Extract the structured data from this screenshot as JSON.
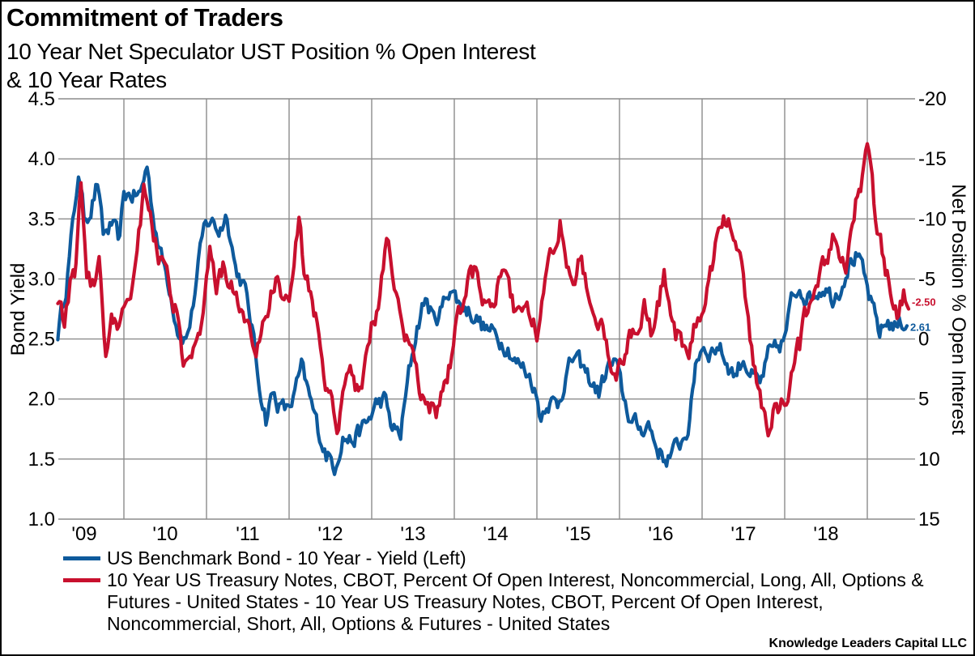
{
  "title": "Commitment of Traders",
  "subtitle_lines": [
    "10 Year Net Speculator UST Position % Open Interest",
    "& 10 Year Rates"
  ],
  "source": "Knowledge Leaders Capital LLC",
  "colors": {
    "blue": "#0e5a9c",
    "red": "#c8102e",
    "grid": "#8c8c8c"
  },
  "chart_data": {
    "type": "line",
    "title": "Commitment of Traders",
    "subtitle": "10 Year Net Speculator UST Position % Open Interest & 10 Year Rates",
    "xlabel": "",
    "x_tick_labels": [
      "'09",
      "'10",
      "'11",
      "'12",
      "'13",
      "'14",
      "'15",
      "'16",
      "'17",
      "'18"
    ],
    "x_range": [
      2009.2,
      2019.55
    ],
    "grid": true,
    "legend_position": "bottom",
    "left_axis": {
      "label": "Bond Yield",
      "ylim": [
        1.0,
        4.5
      ],
      "ticks": [
        "4.5",
        "4.0",
        "3.5",
        "3.0",
        "2.5",
        "2.0",
        "1.5",
        "1.0"
      ]
    },
    "right_axis": {
      "label": "Net Position % Open Interest",
      "ylim": [
        -20,
        15
      ],
      "inverted": true,
      "ticks": [
        "-20",
        "-15",
        "-10",
        "-5",
        "0",
        "5",
        "10",
        "15"
      ]
    },
    "series": [
      {
        "name": "US Benchmark Bond - 10 Year - Yield   (Left)",
        "axis": "left",
        "color": "#0e5a9c",
        "last_value_label": "2.61",
        "points": [
          [
            2009.2,
            2.55
          ],
          [
            2009.3,
            2.95
          ],
          [
            2009.4,
            3.55
          ],
          [
            2009.45,
            3.9
          ],
          [
            2009.52,
            3.5
          ],
          [
            2009.6,
            3.6
          ],
          [
            2009.68,
            3.8
          ],
          [
            2009.75,
            3.35
          ],
          [
            2009.85,
            3.45
          ],
          [
            2009.95,
            3.3
          ],
          [
            2010.0,
            3.7
          ],
          [
            2010.1,
            3.7
          ],
          [
            2010.2,
            3.7
          ],
          [
            2010.28,
            3.95
          ],
          [
            2010.35,
            3.55
          ],
          [
            2010.45,
            3.2
          ],
          [
            2010.55,
            2.95
          ],
          [
            2010.65,
            2.6
          ],
          [
            2010.75,
            2.5
          ],
          [
            2010.82,
            2.7
          ],
          [
            2010.9,
            3.1
          ],
          [
            2010.97,
            3.4
          ],
          [
            2011.05,
            3.5
          ],
          [
            2011.15,
            3.4
          ],
          [
            2011.25,
            3.55
          ],
          [
            2011.35,
            3.1
          ],
          [
            2011.45,
            2.95
          ],
          [
            2011.55,
            2.6
          ],
          [
            2011.62,
            2.2
          ],
          [
            2011.72,
            1.85
          ],
          [
            2011.8,
            2.05
          ],
          [
            2011.88,
            1.95
          ],
          [
            2011.97,
            1.9
          ],
          [
            2012.05,
            2.0
          ],
          [
            2012.15,
            2.25
          ],
          [
            2012.25,
            2.0
          ],
          [
            2012.35,
            1.75
          ],
          [
            2012.45,
            1.55
          ],
          [
            2012.55,
            1.45
          ],
          [
            2012.65,
            1.7
          ],
          [
            2012.75,
            1.65
          ],
          [
            2012.85,
            1.72
          ],
          [
            2012.95,
            1.8
          ],
          [
            2013.05,
            1.95
          ],
          [
            2013.15,
            2.0
          ],
          [
            2013.25,
            1.75
          ],
          [
            2013.35,
            1.7
          ],
          [
            2013.45,
            2.2
          ],
          [
            2013.55,
            2.6
          ],
          [
            2013.65,
            2.85
          ],
          [
            2013.75,
            2.65
          ],
          [
            2013.85,
            2.75
          ],
          [
            2013.95,
            2.95
          ],
          [
            2014.05,
            2.8
          ],
          [
            2014.15,
            2.75
          ],
          [
            2014.25,
            2.7
          ],
          [
            2014.35,
            2.6
          ],
          [
            2014.45,
            2.55
          ],
          [
            2014.55,
            2.5
          ],
          [
            2014.65,
            2.45
          ],
          [
            2014.75,
            2.3
          ],
          [
            2014.85,
            2.25
          ],
          [
            2014.95,
            2.15
          ],
          [
            2015.05,
            1.85
          ],
          [
            2015.12,
            2.0
          ],
          [
            2015.25,
            1.95
          ],
          [
            2015.35,
            2.2
          ],
          [
            2015.45,
            2.35
          ],
          [
            2015.55,
            2.25
          ],
          [
            2015.65,
            2.15
          ],
          [
            2015.75,
            2.05
          ],
          [
            2015.85,
            2.25
          ],
          [
            2015.95,
            2.3
          ],
          [
            2016.05,
            2.0
          ],
          [
            2016.15,
            1.8
          ],
          [
            2016.25,
            1.75
          ],
          [
            2016.35,
            1.8
          ],
          [
            2016.45,
            1.6
          ],
          [
            2016.55,
            1.5
          ],
          [
            2016.65,
            1.55
          ],
          [
            2016.75,
            1.65
          ],
          [
            2016.85,
            1.8
          ],
          [
            2016.92,
            2.3
          ],
          [
            2017.0,
            2.45
          ],
          [
            2017.1,
            2.4
          ],
          [
            2017.2,
            2.45
          ],
          [
            2017.3,
            2.3
          ],
          [
            2017.4,
            2.2
          ],
          [
            2017.5,
            2.35
          ],
          [
            2017.6,
            2.2
          ],
          [
            2017.7,
            2.1
          ],
          [
            2017.8,
            2.35
          ],
          [
            2017.9,
            2.4
          ],
          [
            2018.0,
            2.5
          ],
          [
            2018.08,
            2.8
          ],
          [
            2018.18,
            2.95
          ],
          [
            2018.28,
            2.85
          ],
          [
            2018.38,
            2.9
          ],
          [
            2018.48,
            2.95
          ],
          [
            2018.58,
            2.85
          ],
          [
            2018.68,
            2.95
          ],
          [
            2018.78,
            3.15
          ],
          [
            2018.88,
            3.2
          ],
          [
            2018.98,
            2.95
          ],
          [
            2019.08,
            2.7
          ],
          [
            2019.15,
            2.55
          ],
          [
            2019.25,
            2.65
          ],
          [
            2019.35,
            2.6
          ],
          [
            2019.42,
            2.65
          ],
          [
            2019.48,
            2.61
          ]
        ]
      },
      {
        "name": "10 Year US Treasury Notes, CBOT, Percent Of Open Interest, Noncommercial, Long, All, Options & Futures - United States - 10 Year US Treasury Notes, CBOT, Percent Of Open Interest, Noncommercial, Short, All, Options & Futures - United States",
        "axis": "right",
        "color": "#c8102e",
        "last_value_label": "-2.50",
        "points": [
          [
            2009.2,
            -3.0
          ],
          [
            2009.28,
            -1.0
          ],
          [
            2009.35,
            -4.5
          ],
          [
            2009.42,
            -6.0
          ],
          [
            2009.48,
            -12.5
          ],
          [
            2009.55,
            -5.0
          ],
          [
            2009.62,
            -4.5
          ],
          [
            2009.7,
            -6.5
          ],
          [
            2009.78,
            2.0
          ],
          [
            2009.85,
            -2.5
          ],
          [
            2009.92,
            -1.5
          ],
          [
            2010.0,
            -3.5
          ],
          [
            2010.08,
            -3.0
          ],
          [
            2010.16,
            -8.0
          ],
          [
            2010.24,
            -12.5
          ],
          [
            2010.32,
            -10.0
          ],
          [
            2010.4,
            -7.5
          ],
          [
            2010.48,
            -5.5
          ],
          [
            2010.56,
            -4.0
          ],
          [
            2010.64,
            -2.0
          ],
          [
            2010.72,
            3.0
          ],
          [
            2010.8,
            2.5
          ],
          [
            2010.88,
            1.0
          ],
          [
            2010.96,
            -1.5
          ],
          [
            2011.04,
            -7.0
          ],
          [
            2011.12,
            -4.0
          ],
          [
            2011.2,
            -6.0
          ],
          [
            2011.28,
            -5.0
          ],
          [
            2011.36,
            -3.0
          ],
          [
            2011.44,
            -2.5
          ],
          [
            2011.52,
            0.0
          ],
          [
            2011.6,
            1.0
          ],
          [
            2011.68,
            -1.5
          ],
          [
            2011.76,
            -3.0
          ],
          [
            2011.84,
            -5.0
          ],
          [
            2011.92,
            -4.0
          ],
          [
            2012.0,
            -2.0
          ],
          [
            2012.06,
            -6.5
          ],
          [
            2012.12,
            -9.5
          ],
          [
            2012.2,
            -5.0
          ],
          [
            2012.28,
            -3.0
          ],
          [
            2012.36,
            -0.5
          ],
          [
            2012.44,
            3.0
          ],
          [
            2012.52,
            4.5
          ],
          [
            2012.6,
            7.5
          ],
          [
            2012.65,
            4.0
          ],
          [
            2012.72,
            2.0
          ],
          [
            2012.8,
            4.0
          ],
          [
            2012.88,
            4.5
          ],
          [
            2012.95,
            1.0
          ],
          [
            2013.02,
            -1.5
          ],
          [
            2013.1,
            -3.5
          ],
          [
            2013.18,
            -8.5
          ],
          [
            2013.25,
            -6.0
          ],
          [
            2013.32,
            -3.0
          ],
          [
            2013.4,
            -1.0
          ],
          [
            2013.48,
            1.5
          ],
          [
            2013.56,
            3.0
          ],
          [
            2013.63,
            5.5
          ],
          [
            2013.7,
            5.5
          ],
          [
            2013.78,
            6.5
          ],
          [
            2013.86,
            4.0
          ],
          [
            2013.95,
            2.0
          ],
          [
            2014.05,
            -2.0
          ],
          [
            2014.12,
            -3.5
          ],
          [
            2014.2,
            -5.0
          ],
          [
            2014.28,
            -5.5
          ],
          [
            2014.36,
            -3.5
          ],
          [
            2014.44,
            -2.5
          ],
          [
            2014.52,
            -4.5
          ],
          [
            2014.6,
            -6.0
          ],
          [
            2014.68,
            -3.5
          ],
          [
            2014.76,
            -2.0
          ],
          [
            2014.84,
            -3.0
          ],
          [
            2014.92,
            -2.5
          ],
          [
            2015.0,
            -1.0
          ],
          [
            2015.06,
            -2.5
          ],
          [
            2015.14,
            -5.5
          ],
          [
            2015.22,
            -8.5
          ],
          [
            2015.28,
            -10.0
          ],
          [
            2015.36,
            -7.0
          ],
          [
            2015.44,
            -5.5
          ],
          [
            2015.52,
            -6.5
          ],
          [
            2015.6,
            -5.0
          ],
          [
            2015.7,
            -2.0
          ],
          [
            2015.8,
            -0.5
          ],
          [
            2015.88,
            1.5
          ],
          [
            2015.96,
            2.5
          ],
          [
            2016.05,
            1.5
          ],
          [
            2016.14,
            -0.5
          ],
          [
            2016.22,
            -1.0
          ],
          [
            2016.3,
            -3.5
          ],
          [
            2016.38,
            -1.0
          ],
          [
            2016.46,
            -2.5
          ],
          [
            2016.54,
            -5.5
          ],
          [
            2016.6,
            -2.5
          ],
          [
            2016.68,
            -0.5
          ],
          [
            2016.76,
            0.5
          ],
          [
            2016.84,
            1.5
          ],
          [
            2016.9,
            -0.5
          ],
          [
            2016.95,
            -1.5
          ],
          [
            2017.02,
            -2.5
          ],
          [
            2017.1,
            -5.0
          ],
          [
            2017.18,
            -8.5
          ],
          [
            2017.26,
            -10.5
          ],
          [
            2017.34,
            -9.5
          ],
          [
            2017.42,
            -8.5
          ],
          [
            2017.5,
            -6.0
          ],
          [
            2017.58,
            -0.5
          ],
          [
            2017.66,
            3.0
          ],
          [
            2017.74,
            6.5
          ],
          [
            2017.8,
            8.0
          ],
          [
            2017.86,
            6.0
          ],
          [
            2017.92,
            5.5
          ],
          [
            2017.98,
            5.5
          ],
          [
            2018.06,
            3.5
          ],
          [
            2018.12,
            1.0
          ],
          [
            2018.18,
            0.5
          ],
          [
            2018.26,
            -2.0
          ],
          [
            2018.34,
            -4.5
          ],
          [
            2018.42,
            -6.0
          ],
          [
            2018.5,
            -6.5
          ],
          [
            2018.58,
            -8.5
          ],
          [
            2018.66,
            -5.5
          ],
          [
            2018.74,
            -6.0
          ],
          [
            2018.82,
            -9.5
          ],
          [
            2018.88,
            -12.0
          ],
          [
            2018.94,
            -13.5
          ],
          [
            2019.0,
            -15.5
          ],
          [
            2019.06,
            -12.5
          ],
          [
            2019.12,
            -9.0
          ],
          [
            2019.2,
            -7.0
          ],
          [
            2019.28,
            -4.0
          ],
          [
            2019.36,
            -2.5
          ],
          [
            2019.44,
            -4.0
          ],
          [
            2019.5,
            -2.5
          ]
        ]
      }
    ]
  }
}
